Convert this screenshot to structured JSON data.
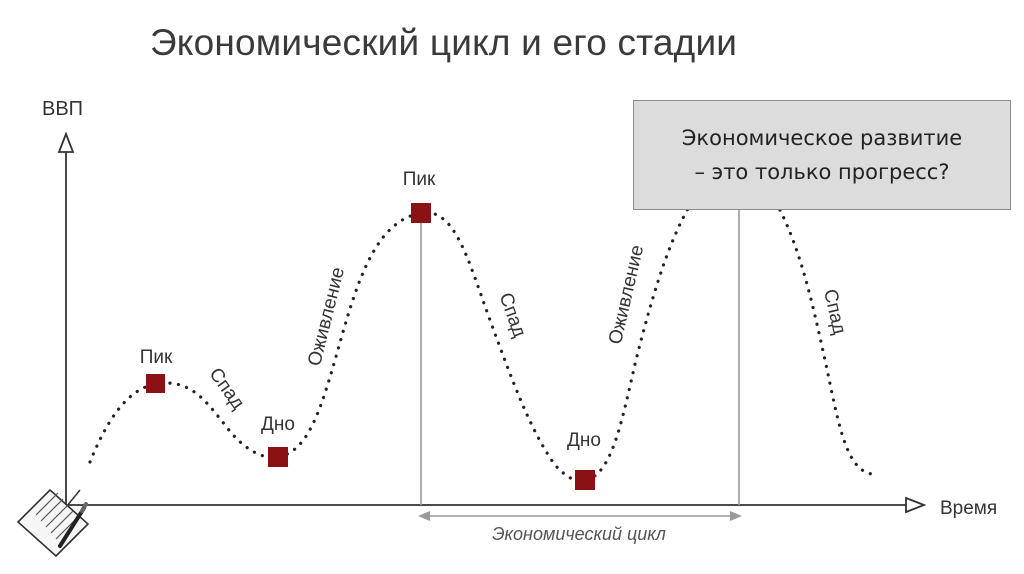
{
  "slide": {
    "title": "Экономический цикл и его стадии"
  },
  "diagram": {
    "y_axis_label": "ВВП",
    "x_axis_label": "Время",
    "points": [
      {
        "label": "Пик"
      },
      {
        "label": "Дно"
      },
      {
        "label": "Пик"
      },
      {
        "label": "Дно"
      }
    ],
    "phases": [
      "Спад",
      "Оживление",
      "Спад",
      "Оживление",
      "Спад"
    ],
    "cycle_label": "Экономический цикл",
    "marker_color": "#8b1214",
    "line_color": "#222222"
  },
  "callout": {
    "line1": "Экономическое развитие",
    "line2": "– это только прогресс?"
  },
  "icons": {
    "corner": "document-pen-icon"
  }
}
